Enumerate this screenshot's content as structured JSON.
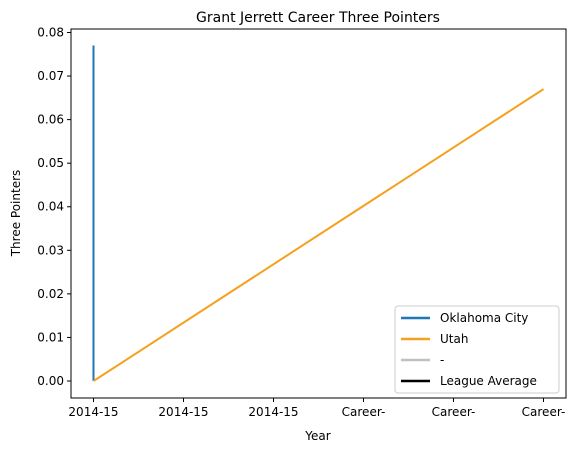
{
  "chart_data": {
    "type": "line",
    "title": "Grant Jerrett Career Three Pointers",
    "xlabel": "Year",
    "ylabel": "Three Pointers",
    "x_tick_labels": [
      "2014-15",
      "2014-15",
      "2014-15",
      "Career-",
      "Career-",
      "Career-"
    ],
    "ylim": [
      -0.0039,
      0.0808
    ],
    "y_ticks": [
      0.0,
      0.01,
      0.02,
      0.03,
      0.04,
      0.05,
      0.06,
      0.07,
      0.08
    ],
    "y_tick_labels": [
      "0.00",
      "0.01",
      "0.02",
      "0.03",
      "0.04",
      "0.05",
      "0.06",
      "0.07",
      "0.08"
    ],
    "xlim": [
      -0.25,
      5.25
    ],
    "grid": false,
    "legend_position": "lower-right",
    "series": [
      {
        "name": "Oklahoma City",
        "color": "#1f77b4",
        "x": [
          0,
          0
        ],
        "y": [
          0.0,
          0.077
        ]
      },
      {
        "name": "Utah",
        "color": "#f5a11f",
        "x": [
          0,
          5
        ],
        "y": [
          0.0,
          0.067
        ]
      },
      {
        "name": "-",
        "color": "#c0c0c0",
        "x": [],
        "y": []
      },
      {
        "name": "League Average",
        "color": "#000000",
        "x": [],
        "y": []
      }
    ]
  }
}
